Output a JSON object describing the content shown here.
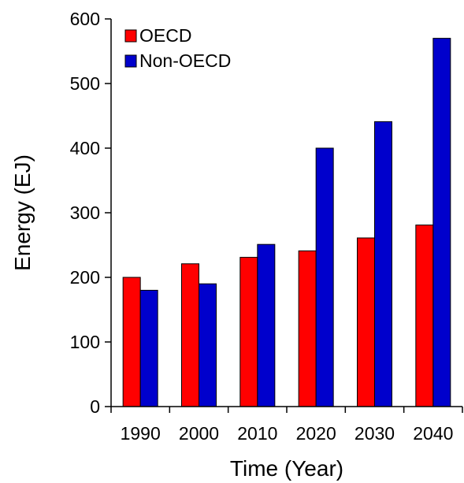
{
  "chart_data": {
    "type": "bar",
    "xlabel": "Time (Year)",
    "ylabel": "Energy (EJ)",
    "ylim": [
      0,
      600
    ],
    "yticks": [
      0,
      100,
      200,
      300,
      400,
      500,
      600
    ],
    "categories": [
      "1990",
      "2000",
      "2010",
      "2020",
      "2030",
      "2040"
    ],
    "series": [
      {
        "name": "OECD",
        "color": "#ff0000",
        "values": [
          200,
          221,
          231,
          241,
          261,
          281
        ]
      },
      {
        "name": "Non-OECD",
        "color": "#0000cc",
        "values": [
          180,
          190,
          251,
          400,
          441,
          570
        ]
      }
    ],
    "legend_position": "top-left",
    "grid": false
  }
}
